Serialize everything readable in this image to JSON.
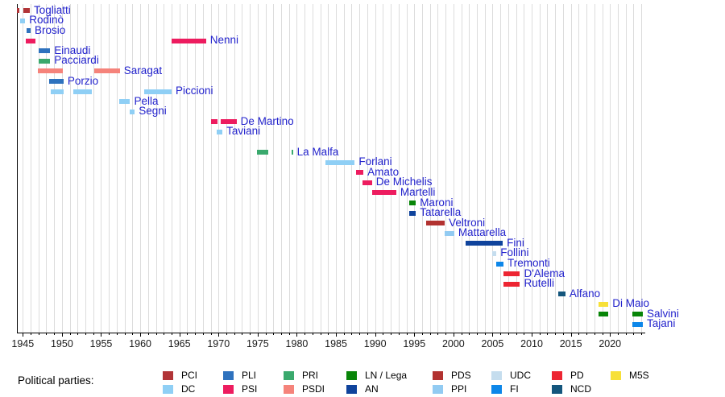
{
  "legend": {
    "title": "Political parties:"
  },
  "chart_data": {
    "type": "bar",
    "subtype": "gantt-timeline",
    "title": "",
    "xlabel": "",
    "ylabel": "",
    "x_axis": {
      "start": 1944.25,
      "end": 2024.4,
      "major_ticks": [
        1945,
        1950,
        1955,
        1960,
        1965,
        1970,
        1975,
        1980,
        1985,
        1990,
        1995,
        2000,
        2005,
        2010,
        2015,
        2020
      ],
      "minor_tick_every": 1,
      "grid": true
    },
    "parties": {
      "PCI": {
        "label": "PCI",
        "color": "#b13437"
      },
      "DC": {
        "label": "DC",
        "color": "#8fcff5"
      },
      "PLI": {
        "label": "PLI",
        "color": "#2e72be"
      },
      "PSI": {
        "label": "PSI",
        "color": "#ed1c5f"
      },
      "PRI": {
        "label": "PRI",
        "color": "#3aa96d"
      },
      "PSDI": {
        "label": "PSDI",
        "color": "#f5837b"
      },
      "LN": {
        "label": "LN / Lega",
        "color": "#088508"
      },
      "AN": {
        "label": "AN",
        "color": "#0f439c"
      },
      "PDS": {
        "label": "PDS",
        "color": "#b23230"
      },
      "PPI": {
        "label": "PPI",
        "color": "#92cbf2"
      },
      "UDC": {
        "label": "UDC",
        "color": "#c5ddee"
      },
      "FI": {
        "label": "FI",
        "color": "#0d87e9"
      },
      "PD": {
        "label": "PD",
        "color": "#ed2532"
      },
      "NCD": {
        "label": "NCD",
        "color": "#14567d"
      },
      "M5S": {
        "label": "M5S",
        "color": "#f7e038"
      }
    },
    "legend_columns": [
      [
        "PCI",
        "DC"
      ],
      [
        "PLI",
        "PSI"
      ],
      [
        "PRI",
        "PSDI"
      ],
      [
        "LN",
        "AN"
      ],
      [
        "PDS",
        "PPI"
      ],
      [
        "UDC",
        "FI"
      ],
      [
        "PD",
        "NCD"
      ],
      [
        "M5S"
      ]
    ],
    "people": [
      {
        "name": "Togliatti",
        "party": "PCI",
        "terms": [
          [
            1944.3,
            1944.6
          ],
          [
            1945.1,
            1945.9
          ]
        ]
      },
      {
        "name": "Rodinò",
        "party": "DC",
        "terms": [
          [
            1944.7,
            1945.3
          ]
        ]
      },
      {
        "name": "Brosio",
        "party": "PLI",
        "terms": [
          [
            1945.5,
            1946.0
          ]
        ]
      },
      {
        "name": "Nenni",
        "party": "PSI",
        "terms": [
          [
            1945.4,
            1946.6
          ],
          [
            1964.0,
            1968.4
          ]
        ]
      },
      {
        "name": "Einaudi",
        "party": "PLI",
        "terms": [
          [
            1947.0,
            1948.5
          ]
        ]
      },
      {
        "name": "Pacciardi",
        "party": "PRI",
        "terms": [
          [
            1947.0,
            1948.5
          ]
        ]
      },
      {
        "name": "Saragat",
        "party": "PSDI",
        "terms": [
          [
            1946.9,
            1950.1
          ],
          [
            1954.1,
            1957.4
          ]
        ]
      },
      {
        "name": "Porzio",
        "party": "PLI",
        "terms": [
          [
            1948.4,
            1950.2
          ]
        ]
      },
      {
        "name": "Piccioni",
        "party": "DC",
        "terms": [
          [
            1948.6,
            1950.2
          ],
          [
            1951.5,
            1953.8
          ],
          [
            1960.5,
            1964.0
          ]
        ]
      },
      {
        "name": "Pella",
        "party": "DC",
        "terms": [
          [
            1957.3,
            1958.7
          ]
        ]
      },
      {
        "name": "Segni",
        "party": "DC",
        "terms": [
          [
            1958.7,
            1959.3
          ]
        ]
      },
      {
        "name": "De Martino",
        "party": "PSI",
        "terms": [
          [
            1969.0,
            1969.9
          ],
          [
            1970.3,
            1972.3
          ]
        ]
      },
      {
        "name": "Taviani",
        "party": "DC",
        "terms": [
          [
            1969.8,
            1970.5
          ]
        ]
      },
      {
        "name": "La Malfa",
        "party": "PRI",
        "terms": [
          [
            1974.9,
            1976.4
          ],
          [
            1979.3,
            1979.5
          ]
        ],
        "row_gap_before": 1
      },
      {
        "name": "Forlani",
        "party": "DC",
        "terms": [
          [
            1983.7,
            1987.4
          ]
        ]
      },
      {
        "name": "Amato",
        "party": "PSI",
        "terms": [
          [
            1987.6,
            1988.5
          ]
        ]
      },
      {
        "name": "De Michelis",
        "party": "PSI",
        "terms": [
          [
            1988.4,
            1989.6
          ]
        ]
      },
      {
        "name": "Martelli",
        "party": "PSI",
        "terms": [
          [
            1989.6,
            1992.7
          ]
        ]
      },
      {
        "name": "Maroni",
        "party": "LN",
        "terms": [
          [
            1994.4,
            1995.2
          ]
        ]
      },
      {
        "name": "Tatarella",
        "party": "AN",
        "terms": [
          [
            1994.4,
            1995.2
          ]
        ]
      },
      {
        "name": "Veltroni",
        "party": "PDS",
        "terms": [
          [
            1996.5,
            1998.9
          ]
        ]
      },
      {
        "name": "Mattarella",
        "party": "PPI",
        "terms": [
          [
            1998.9,
            2000.1
          ]
        ]
      },
      {
        "name": "Fini",
        "party": "AN",
        "terms": [
          [
            2001.6,
            2006.3
          ]
        ]
      },
      {
        "name": "Follini",
        "party": "UDC",
        "terms": [
          [
            2005.0,
            2005.5
          ]
        ]
      },
      {
        "name": "Tremonti",
        "party": "FI",
        "terms": [
          [
            2005.5,
            2006.4
          ]
        ]
      },
      {
        "name": "D'Alema",
        "party": "PD",
        "terms": [
          [
            2006.4,
            2008.5
          ]
        ]
      },
      {
        "name": "Rutelli",
        "party": "PD",
        "terms": [
          [
            2006.4,
            2008.5
          ]
        ]
      },
      {
        "name": "Alfano",
        "party": "NCD",
        "terms": [
          [
            2013.4,
            2014.3
          ]
        ]
      },
      {
        "name": "Di Maio",
        "party": "M5S",
        "terms": [
          [
            2018.5,
            2019.8
          ]
        ]
      },
      {
        "name": "Salvini",
        "party": "LN",
        "terms": [
          [
            2018.5,
            2019.8
          ],
          [
            2022.9,
            2024.2
          ]
        ]
      },
      {
        "name": "Tajani",
        "party": "FI",
        "terms": [
          [
            2022.9,
            2024.2
          ]
        ]
      }
    ]
  }
}
